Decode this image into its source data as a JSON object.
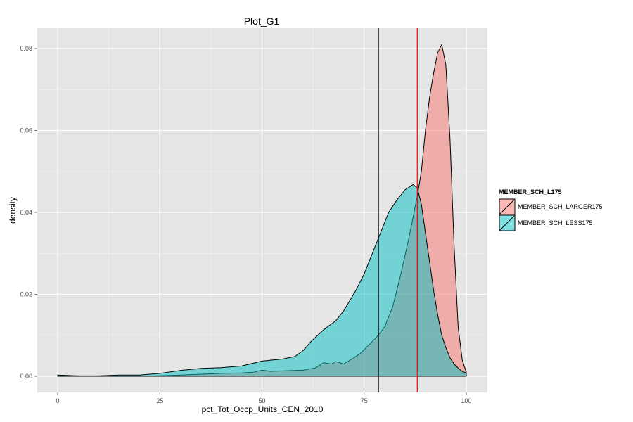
{
  "chart_data": {
    "type": "area",
    "title": "Plot_G1",
    "xlabel": "pct_Tot_Occp_Units_CEN_2010",
    "ylabel": "density",
    "xlim": [
      0,
      100
    ],
    "ylim": [
      0,
      0.08
    ],
    "x_ticks": [
      0,
      25,
      50,
      75,
      100
    ],
    "y_ticks": [
      0.0,
      0.02,
      0.04,
      0.06,
      0.08
    ],
    "x_tick_labels": [
      "0",
      "25",
      "50",
      "75",
      "100"
    ],
    "y_tick_labels": [
      "0.00",
      "0.02",
      "0.04",
      "0.06",
      "0.08"
    ],
    "grid": true,
    "legend": {
      "title": "MEMBER_SCH_L175",
      "placement": "right"
    },
    "series": [
      {
        "name": "MEMBER_SCH_LARGER175",
        "fill": "#F8766D",
        "points": [
          [
            0,
            0.0
          ],
          [
            10,
            0.0
          ],
          [
            20,
            0.0
          ],
          [
            30,
            0.0003
          ],
          [
            35,
            0.0005
          ],
          [
            40,
            0.0007
          ],
          [
            45,
            0.0008
          ],
          [
            48,
            0.001
          ],
          [
            50,
            0.0015
          ],
          [
            52,
            0.0012
          ],
          [
            55,
            0.0013
          ],
          [
            60,
            0.0015
          ],
          [
            63,
            0.002
          ],
          [
            65,
            0.0033
          ],
          [
            67,
            0.003
          ],
          [
            68,
            0.0036
          ],
          [
            70,
            0.003
          ],
          [
            72,
            0.0042
          ],
          [
            74,
            0.0055
          ],
          [
            76,
            0.0075
          ],
          [
            78,
            0.0095
          ],
          [
            80,
            0.012
          ],
          [
            82,
            0.017
          ],
          [
            84,
            0.025
          ],
          [
            86,
            0.034
          ],
          [
            88,
            0.044
          ],
          [
            89,
            0.05
          ],
          [
            90,
            0.06
          ],
          [
            91,
            0.068
          ],
          [
            92,
            0.074
          ],
          [
            93,
            0.079
          ],
          [
            94,
            0.081
          ],
          [
            95,
            0.076
          ],
          [
            96,
            0.058
          ],
          [
            97,
            0.032
          ],
          [
            98,
            0.012
          ],
          [
            99,
            0.004
          ],
          [
            100,
            0.001
          ]
        ]
      },
      {
        "name": "MEMBER_SCH_LESS175",
        "fill": "#00BFC4",
        "points": [
          [
            0,
            0.0003
          ],
          [
            5,
            0.0001
          ],
          [
            10,
            0.0001
          ],
          [
            15,
            0.0003
          ],
          [
            20,
            0.0003
          ],
          [
            25,
            0.0007
          ],
          [
            30,
            0.0014
          ],
          [
            35,
            0.0019
          ],
          [
            40,
            0.0021
          ],
          [
            45,
            0.0025
          ],
          [
            50,
            0.0037
          ],
          [
            55,
            0.0042
          ],
          [
            58,
            0.0048
          ],
          [
            60,
            0.0062
          ],
          [
            62,
            0.0085
          ],
          [
            65,
            0.0113
          ],
          [
            68,
            0.0135
          ],
          [
            70,
            0.016
          ],
          [
            73,
            0.021
          ],
          [
            75,
            0.025
          ],
          [
            77,
            0.03
          ],
          [
            79,
            0.035
          ],
          [
            81,
            0.04
          ],
          [
            83,
            0.043
          ],
          [
            85,
            0.0455
          ],
          [
            87,
            0.0468
          ],
          [
            88,
            0.046
          ],
          [
            89,
            0.042
          ],
          [
            90,
            0.035
          ],
          [
            91,
            0.028
          ],
          [
            92,
            0.021
          ],
          [
            93,
            0.015
          ],
          [
            94,
            0.01
          ],
          [
            95,
            0.007
          ],
          [
            96,
            0.0045
          ],
          [
            97,
            0.003
          ],
          [
            98,
            0.002
          ],
          [
            99,
            0.0012
          ],
          [
            100,
            0.0008
          ]
        ]
      }
    ],
    "reference_lines": [
      {
        "x": 78.5,
        "color": "#000000"
      },
      {
        "x": 88,
        "color": "#FF0000"
      }
    ]
  }
}
